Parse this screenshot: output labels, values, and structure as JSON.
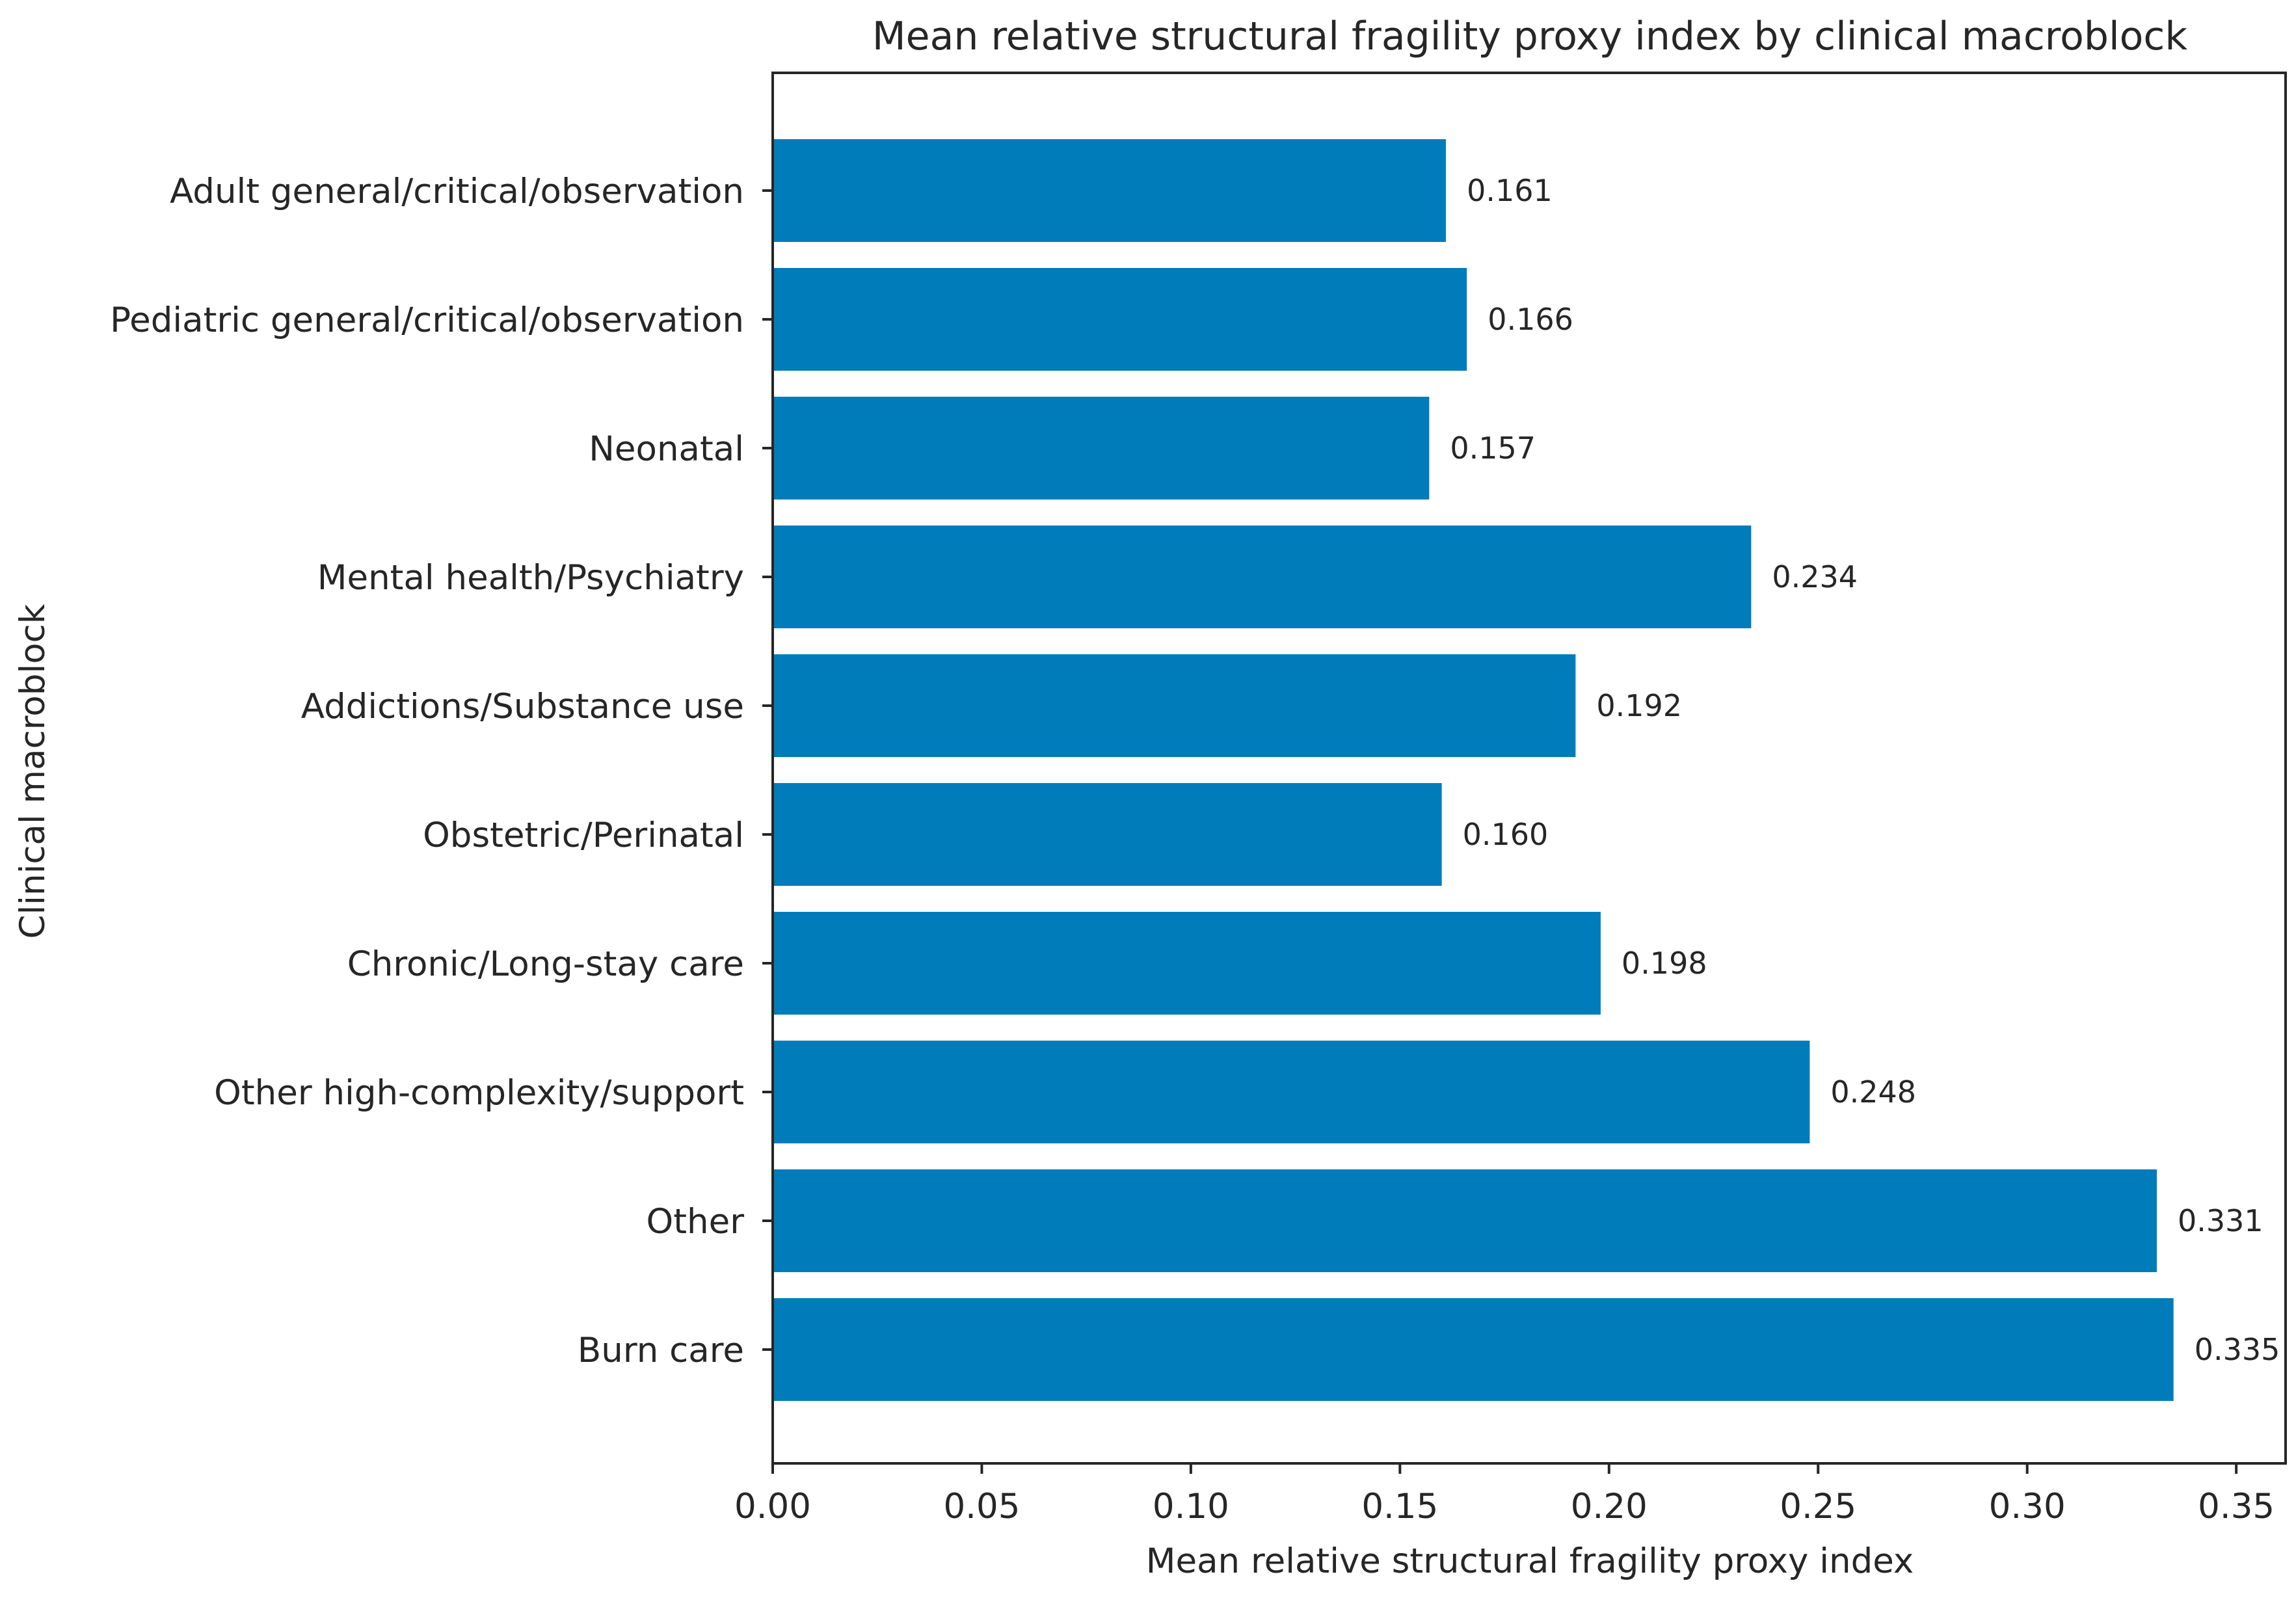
{
  "chart_data": {
    "type": "bar",
    "orientation": "horizontal",
    "title": "Mean relative structural fragility proxy index by clinical macroblock",
    "xlabel": "Mean relative structural fragility proxy index",
    "ylabel": "Clinical macroblock",
    "categories": [
      "Adult general/critical/observation",
      "Pediatric general/critical/observation",
      "Neonatal",
      "Mental health/Psychiatry",
      "Addictions/Substance use",
      "Obstetric/Perinatal",
      "Chronic/Long-stay care",
      "Other high-complexity/support",
      "Other",
      "Burn care"
    ],
    "values": [
      0.161,
      0.166,
      0.157,
      0.234,
      0.192,
      0.16,
      0.198,
      0.248,
      0.331,
      0.335
    ],
    "value_labels": [
      "0.161",
      "0.166",
      "0.157",
      "0.234",
      "0.192",
      "0.160",
      "0.198",
      "0.248",
      "0.331",
      "0.335"
    ],
    "xlim": [
      0,
      0.3618
    ],
    "xticks": [
      0,
      0.05,
      0.1,
      0.15,
      0.2,
      0.25,
      0.3,
      0.35
    ],
    "xtick_labels": [
      "0.00",
      "0.05",
      "0.10",
      "0.15",
      "0.20",
      "0.25",
      "0.30",
      "0.35"
    ],
    "grid": false,
    "bar_color": "#007CBA",
    "axis_color": "#262626"
  }
}
